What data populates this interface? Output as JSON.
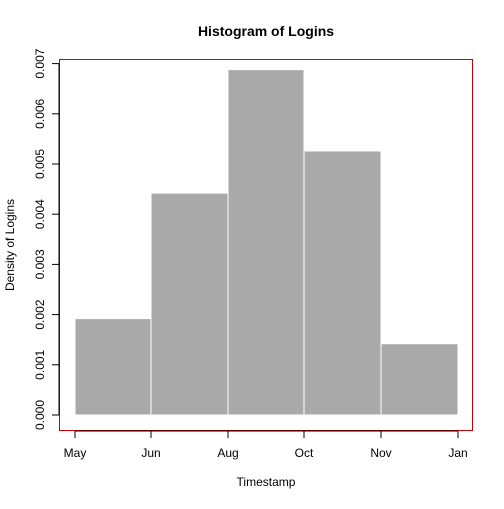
{
  "chart_data": {
    "type": "bar",
    "title": "Histogram of Logins",
    "xlabel": "Timestamp",
    "ylabel": "Density of Logins",
    "x_ticks": [
      "May",
      "Jun",
      "Aug",
      "Oct",
      "Nov",
      "Jan"
    ],
    "y_ticks": [
      "0.000",
      "0.001",
      "0.002",
      "0.003",
      "0.004",
      "0.005",
      "0.006",
      "0.007"
    ],
    "ylim": [
      0,
      0.0072
    ],
    "bins": [
      {
        "start": "May",
        "end": "Jun",
        "density": 0.00192
      },
      {
        "start": "Jun",
        "end": "Aug",
        "density": 0.00442
      },
      {
        "start": "Aug",
        "end": "Oct",
        "density": 0.00688
      },
      {
        "start": "Oct",
        "end": "Nov",
        "density": 0.00526
      },
      {
        "start": "Nov",
        "end": "Jan",
        "density": 0.00142
      }
    ],
    "bar_color": "#a9a9a9",
    "bar_edge_color": "#ffffff",
    "box_color": "#cc0000",
    "grid": false
  }
}
